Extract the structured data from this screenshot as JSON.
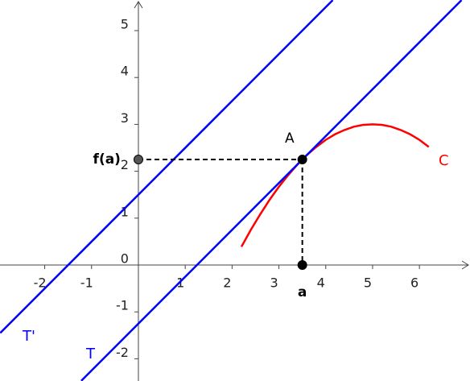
{
  "chart_data": {
    "type": "line",
    "xlim": [
      -2.955,
      7.08
    ],
    "ylim": [
      -2.474,
      5.653
    ],
    "xticks": [
      -2,
      -1,
      1,
      2,
      3,
      4,
      5,
      6
    ],
    "yticks": [
      -2,
      -1,
      0,
      1,
      2,
      3,
      4,
      5
    ],
    "grid": false,
    "series": [
      {
        "name": "C",
        "color": "#ff0000",
        "x": [
          2.2,
          2.4,
          2.6,
          2.8,
          3.0,
          3.2,
          3.4,
          3.6,
          3.8,
          4.0,
          4.2,
          4.4,
          4.6,
          4.8,
          5.0,
          5.2,
          5.4,
          5.6,
          5.8,
          6.0,
          6.2
        ],
        "values": [
          0.39,
          0.75,
          1.08,
          1.39,
          1.67,
          1.92,
          2.15,
          2.35,
          2.52,
          2.67,
          2.79,
          2.88,
          2.95,
          2.99,
          3,
          2.99,
          2.95,
          2.88,
          2.79,
          2.67,
          2.52
        ]
      },
      {
        "name": "T",
        "color": "#0000ff",
        "x": [
          -1.22,
          6.9
        ],
        "values": [
          -2.47,
          5.65
        ]
      },
      {
        "name": "T'",
        "color": "#0000ff",
        "x": [
          -2.95,
          4.15
        ],
        "values": [
          -1.45,
          5.65
        ]
      }
    ],
    "points": [
      {
        "name": "A",
        "x": 3.5,
        "y": 2.25,
        "color": "#000000"
      },
      {
        "name": "f(a)",
        "x": 0,
        "y": 2.25,
        "color": "#555555"
      },
      {
        "name": "a",
        "x": 3.5,
        "y": 0,
        "color": "#000000"
      }
    ]
  }
}
